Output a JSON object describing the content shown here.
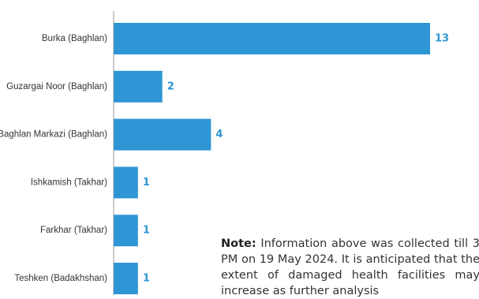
{
  "chart_data": {
    "type": "bar",
    "orientation": "horizontal",
    "categories": [
      "Burka (Baghlan)",
      "Guzargai Noor (Baghlan)",
      "Baghlan Markazi (Baghlan)",
      "Ishkamish (Takhar)",
      "Farkhar (Takhar)",
      "Teshken (Badakhshan)"
    ],
    "values": [
      13,
      2,
      4,
      1,
      1,
      1
    ],
    "bar_color": "#2e96d4",
    "label_color": "#2e96d4",
    "axis_color": "#9a9a9a",
    "xlim": [
      0,
      13
    ],
    "grid": false
  },
  "note": {
    "heading": "Note:",
    "text": "Information above was collected till 3 PM on 19 May 2024. It is anticipated that the extent of damaged health facilities may increase as further analysis"
  }
}
